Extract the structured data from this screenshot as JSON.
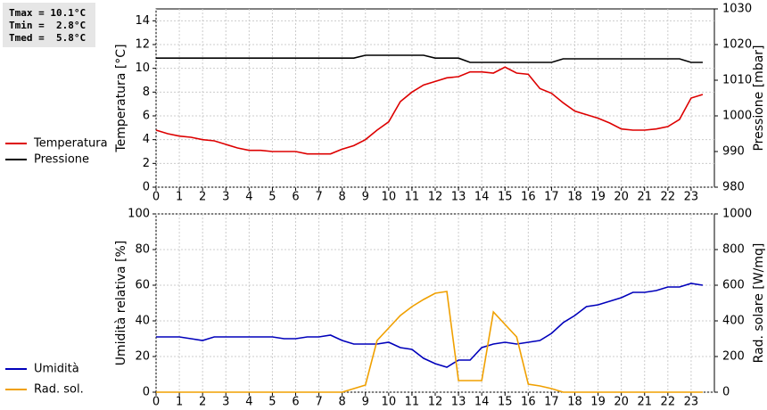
{
  "chart_data": [
    {
      "type": "line",
      "annotations": [
        "Tmax = 10.1°C",
        "Tmin =  2.8°C",
        "Tmed =  5.8°C"
      ],
      "ylabel": "Temperatura [°C]",
      "y2label": "Pressione [mbar]",
      "x": [
        0,
        0.5,
        1,
        1.5,
        2,
        2.5,
        3,
        3.5,
        4,
        4.5,
        5,
        5.5,
        6,
        6.5,
        7,
        7.5,
        8,
        8.5,
        9,
        9.5,
        10,
        10.5,
        11,
        11.5,
        12,
        12.5,
        13,
        13.5,
        14,
        14.5,
        15,
        15.5,
        16,
        16.5,
        17,
        17.5,
        18,
        18.5,
        19,
        19.5,
        20,
        20.5,
        21,
        21.5,
        22,
        22.5,
        23,
        23.5
      ],
      "xlim": [
        0,
        24
      ],
      "xticks": [
        0,
        1,
        2,
        3,
        4,
        5,
        6,
        7,
        8,
        9,
        10,
        11,
        12,
        13,
        14,
        15,
        16,
        17,
        18,
        19,
        20,
        21,
        22,
        23
      ],
      "ylim": [
        0,
        15
      ],
      "yticks": [
        0,
        2,
        4,
        6,
        8,
        10,
        12,
        14
      ],
      "y2lim": [
        980,
        1030
      ],
      "y2ticks": [
        980,
        990,
        1000,
        1010,
        1020,
        1030
      ],
      "grid": true,
      "series": [
        {
          "name": "Temperatura",
          "color": "#dd0000",
          "axis": "y",
          "values": [
            4.8,
            4.5,
            4.3,
            4.2,
            4.0,
            3.9,
            3.6,
            3.3,
            3.1,
            3.1,
            3.0,
            3.0,
            3.0,
            2.8,
            2.8,
            2.8,
            3.2,
            3.5,
            4.0,
            4.8,
            5.5,
            7.2,
            8.0,
            8.6,
            8.9,
            9.2,
            9.3,
            9.7,
            9.7,
            9.6,
            10.1,
            9.6,
            9.5,
            8.3,
            7.9,
            7.1,
            6.4,
            6.1,
            5.8,
            5.4,
            4.9,
            4.8,
            4.8,
            4.9,
            5.1,
            5.7,
            7.5,
            7.8
          ]
        },
        {
          "name": "Pressione",
          "color": "#000000",
          "axis": "y2",
          "values": [
            1016.2,
            1016.2,
            1016.2,
            1016.2,
            1016.2,
            1016.2,
            1016.2,
            1016.2,
            1016.2,
            1016.2,
            1016.2,
            1016.2,
            1016.2,
            1016.2,
            1016.2,
            1016.2,
            1016.2,
            1016.2,
            1017,
            1017,
            1017,
            1017,
            1017,
            1017,
            1016.2,
            1016.2,
            1016.2,
            1015,
            1015,
            1015,
            1015,
            1015,
            1015,
            1015,
            1015,
            1016,
            1016,
            1016,
            1016,
            1016,
            1016,
            1016,
            1016,
            1016,
            1016,
            1016,
            1015,
            1015
          ]
        }
      ]
    },
    {
      "type": "line",
      "ylabel": "Umidità relativa [%]",
      "y2label": "Rad. solare [W/mq]",
      "x": [
        0,
        0.5,
        1,
        1.5,
        2,
        2.5,
        3,
        3.5,
        4,
        4.5,
        5,
        5.5,
        6,
        6.5,
        7,
        7.5,
        8,
        8.5,
        9,
        9.5,
        10,
        10.5,
        11,
        11.5,
        12,
        12.5,
        13,
        13.5,
        14,
        14.5,
        15,
        15.5,
        16,
        16.5,
        17,
        17.5,
        18,
        18.5,
        19,
        19.5,
        20,
        20.5,
        21,
        21.5,
        22,
        22.5,
        23,
        23.5
      ],
      "xlim": [
        0,
        24
      ],
      "xticks": [
        0,
        1,
        2,
        3,
        4,
        5,
        6,
        7,
        8,
        9,
        10,
        11,
        12,
        13,
        14,
        15,
        16,
        17,
        18,
        19,
        20,
        21,
        22,
        23
      ],
      "ylim": [
        0,
        100
      ],
      "yticks": [
        0,
        20,
        40,
        60,
        80,
        100
      ],
      "y2lim": [
        0,
        1000
      ],
      "y2ticks": [
        0,
        200,
        400,
        600,
        800,
        1000
      ],
      "grid": true,
      "series": [
        {
          "name": "Umidità",
          "color": "#0000bb",
          "axis": "y",
          "values": [
            31,
            31,
            31,
            30,
            29,
            31,
            31,
            31,
            31,
            31,
            31,
            30,
            30,
            31,
            31,
            32,
            29,
            27,
            27,
            27,
            28,
            25,
            24,
            19,
            16,
            14,
            18,
            18,
            25,
            27,
            28,
            27,
            28,
            29,
            33,
            39,
            43,
            48,
            49,
            51,
            53,
            56,
            56,
            57,
            59,
            59,
            61,
            60
          ]
        },
        {
          "name": "Rad. sol.",
          "color": "#f0a000",
          "axis": "y2",
          "values": [
            0,
            0,
            0,
            0,
            0,
            0,
            0,
            0,
            0,
            0,
            0,
            0,
            0,
            0,
            0,
            0,
            0,
            20,
            40,
            290,
            360,
            430,
            480,
            520,
            555,
            565,
            65,
            65,
            65,
            450,
            380,
            310,
            45,
            35,
            20,
            0,
            0,
            0,
            0,
            0,
            0,
            0,
            0,
            0,
            0,
            0,
            0,
            0
          ]
        }
      ]
    }
  ]
}
